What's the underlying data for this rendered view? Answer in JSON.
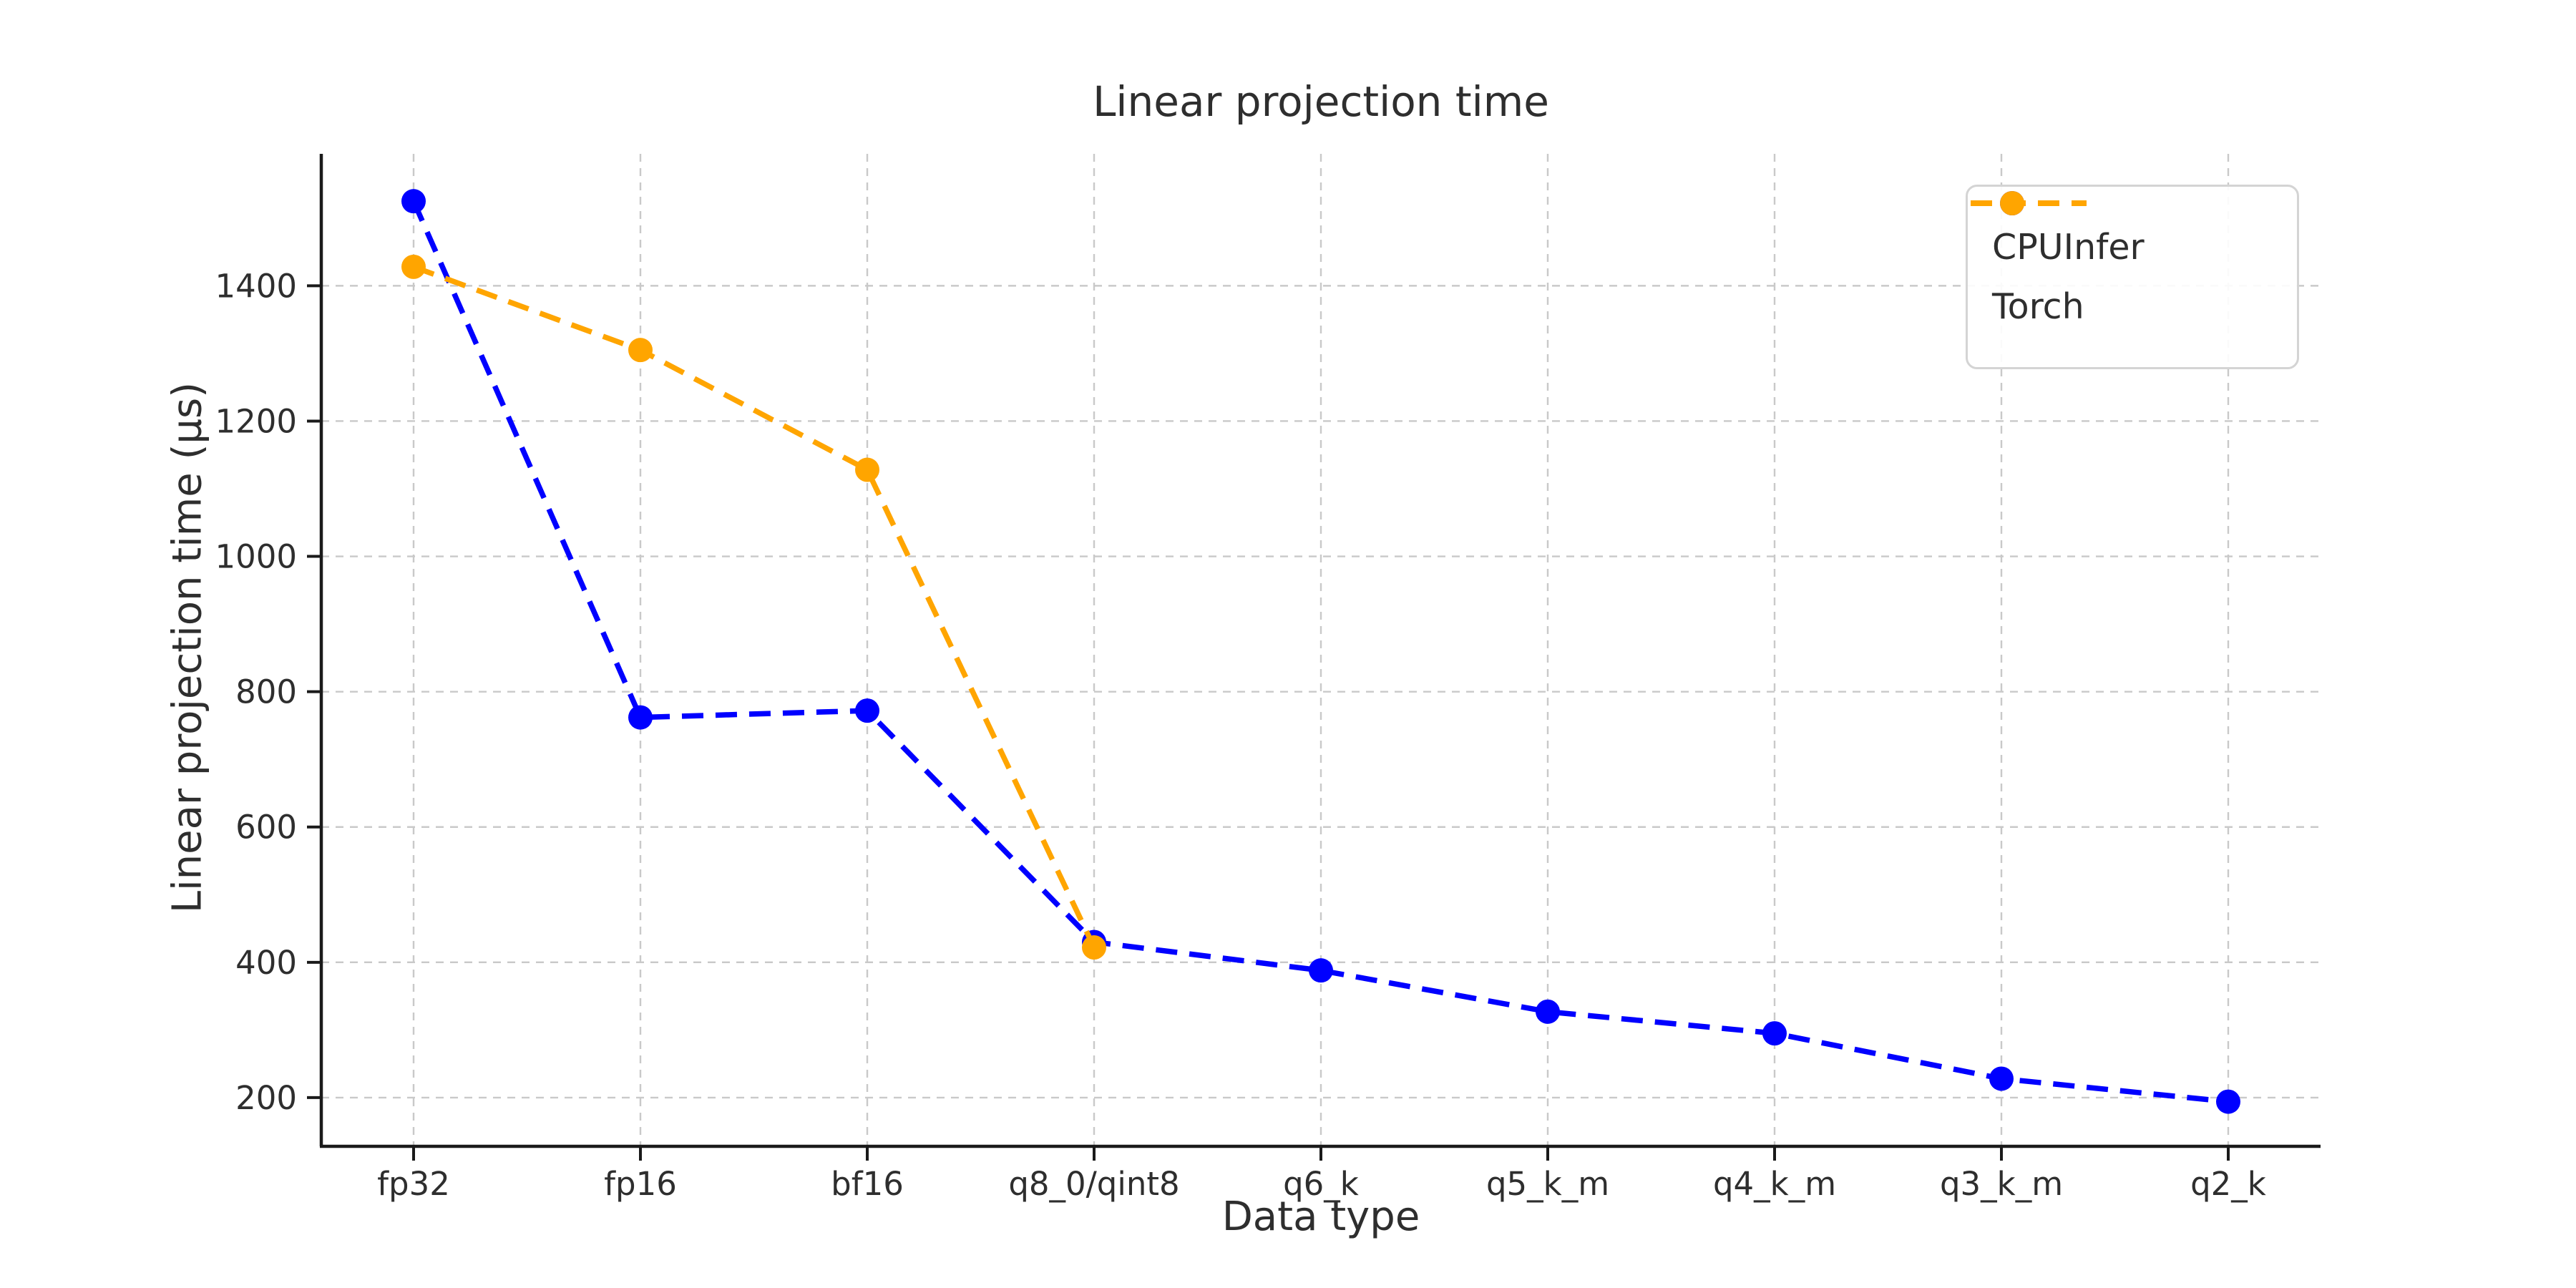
{
  "chart_data": {
    "type": "line",
    "title": "Linear projection time",
    "xlabel": "Data type",
    "ylabel": "Linear projection time (μs)",
    "categories": [
      "fp32",
      "fp16",
      "bf16",
      "q8_0/qint8",
      "q6_k",
      "q5_k_m",
      "q4_k_m",
      "q3_k_m",
      "q2_k"
    ],
    "series": [
      {
        "name": "CPUInfer",
        "color": "#0000ff",
        "values": [
          1525,
          762,
          772,
          430,
          388,
          327,
          295,
          228,
          194
        ]
      },
      {
        "name": "Torch",
        "color": "#ffa500",
        "values": [
          1428,
          1305,
          1128,
          422,
          null,
          null,
          null,
          null,
          null
        ]
      }
    ],
    "yticks": [
      200,
      400,
      600,
      800,
      1000,
      1200,
      1400
    ],
    "ylim": [
      128,
      1595
    ],
    "grid": true,
    "grid_color": "#c9c9c9",
    "line_style": "dashed",
    "marker": "circle",
    "legend_position": "upper right",
    "spine_color": "#1a1a1a",
    "tick_text_color": "#2e2e2e"
  }
}
